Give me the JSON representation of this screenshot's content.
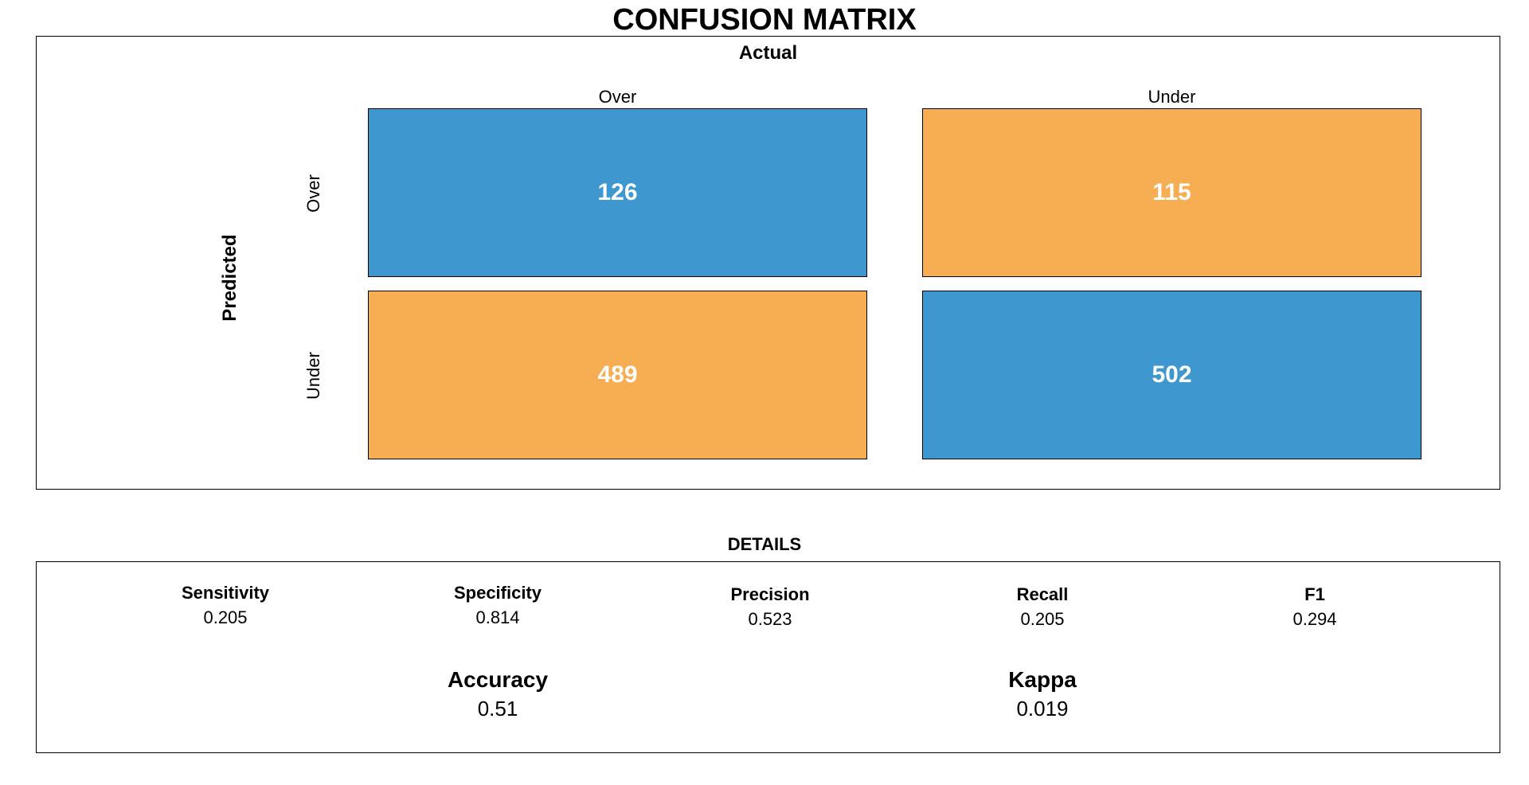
{
  "title": "CONFUSION MATRIX",
  "colors": {
    "correct": "#3F97D0",
    "incorrect": "#F7AD52",
    "cell_text": "#FFFFFF"
  },
  "chart_data": {
    "type": "heatmap",
    "title": "CONFUSION MATRIX",
    "xlabel": "Actual",
    "ylabel": "Predicted",
    "x_categories": [
      "Over",
      "Under"
    ],
    "y_categories": [
      "Over",
      "Under"
    ],
    "cells": [
      {
        "predicted": "Over",
        "actual": "Over",
        "value": 126,
        "correct": true
      },
      {
        "predicted": "Over",
        "actual": "Under",
        "value": 115,
        "correct": false
      },
      {
        "predicted": "Under",
        "actual": "Over",
        "value": 489,
        "correct": false
      },
      {
        "predicted": "Under",
        "actual": "Under",
        "value": 502,
        "correct": true
      }
    ]
  },
  "details": {
    "title": "DETAILS",
    "metrics": [
      {
        "label": "Sensitivity",
        "value": "0.205"
      },
      {
        "label": "Specificity",
        "value": "0.814"
      },
      {
        "label": "Precision",
        "value": "0.523"
      },
      {
        "label": "Recall",
        "value": "0.205"
      },
      {
        "label": "F1",
        "value": "0.294"
      }
    ],
    "summary": [
      {
        "label": "Accuracy",
        "value": "0.51"
      },
      {
        "label": "Kappa",
        "value": "0.019"
      }
    ]
  }
}
